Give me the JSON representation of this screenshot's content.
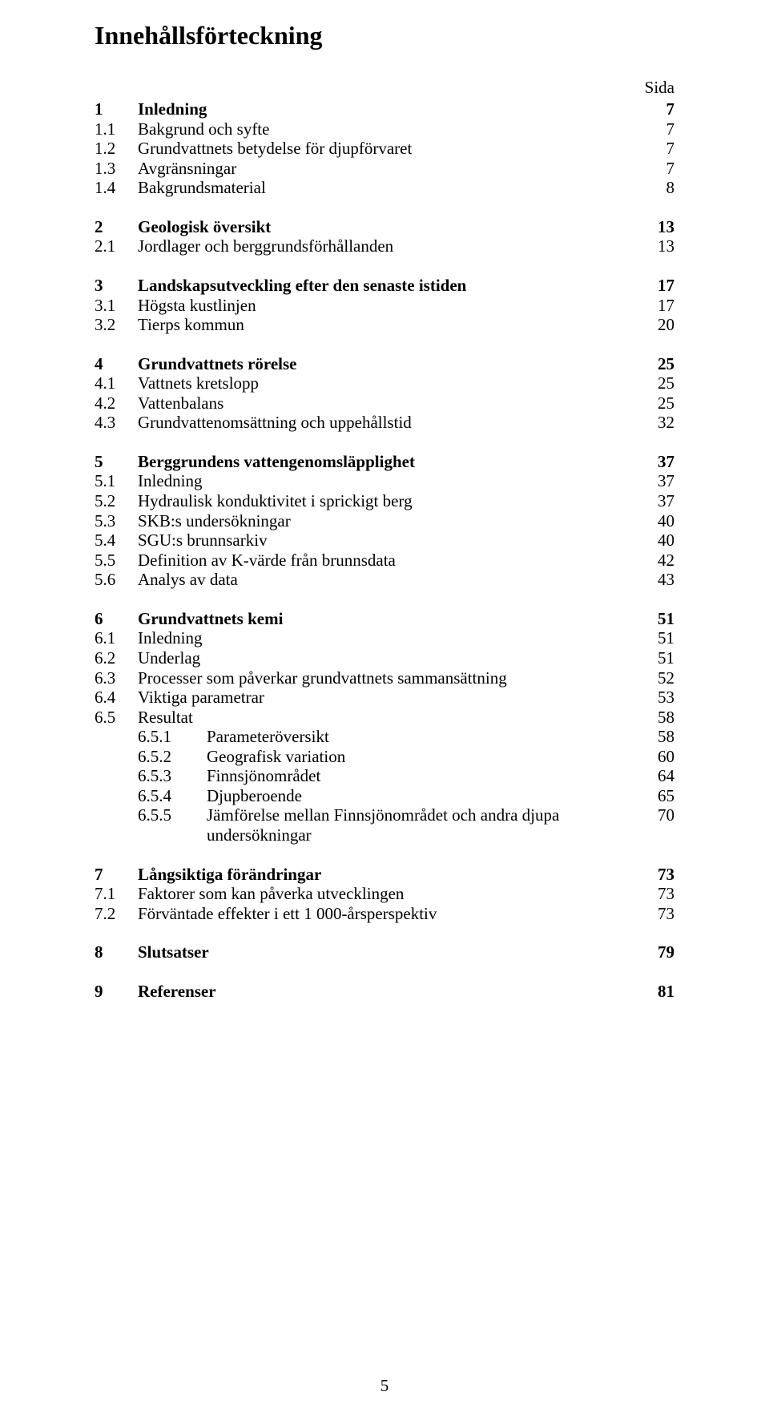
{
  "title": "Innehållsförteckning",
  "sida_label": "Sida",
  "page_number": "5",
  "sections": [
    {
      "head": {
        "num": "1",
        "text": "Inledning",
        "page": "7"
      },
      "items": [
        {
          "num": "1.1",
          "text": "Bakgrund och syfte",
          "page": "7"
        },
        {
          "num": "1.2",
          "text": "Grundvattnets betydelse för djupförvaret",
          "page": "7"
        },
        {
          "num": "1.3",
          "text": "Avgränsningar",
          "page": "7"
        },
        {
          "num": "1.4",
          "text": "Bakgrundsmaterial",
          "page": "8"
        }
      ]
    },
    {
      "head": {
        "num": "2",
        "text": "Geologisk översikt",
        "page": "13"
      },
      "items": [
        {
          "num": "2.1",
          "text": "Jordlager och berggrundsförhållanden",
          "page": "13"
        }
      ]
    },
    {
      "head": {
        "num": "3",
        "text": "Landskapsutveckling efter den senaste istiden",
        "page": "17"
      },
      "items": [
        {
          "num": "3.1",
          "text": "Högsta kustlinjen",
          "page": "17"
        },
        {
          "num": "3.2",
          "text": "Tierps kommun",
          "page": "20"
        }
      ]
    },
    {
      "head": {
        "num": "4",
        "text": "Grundvattnets rörelse",
        "page": "25"
      },
      "items": [
        {
          "num": "4.1",
          "text": "Vattnets kretslopp",
          "page": "25"
        },
        {
          "num": "4.2",
          "text": "Vattenbalans",
          "page": "25"
        },
        {
          "num": "4.3",
          "text": "Grundvattenomsättning och uppehållstid",
          "page": "32"
        }
      ]
    },
    {
      "head": {
        "num": "5",
        "text": "Berggrundens vattengenomsläpplighet",
        "page": "37"
      },
      "items": [
        {
          "num": "5.1",
          "text": "Inledning",
          "page": "37"
        },
        {
          "num": "5.2",
          "text": "Hydraulisk konduktivitet i sprickigt berg",
          "page": "37"
        },
        {
          "num": "5.3",
          "text": "SKB:s undersökningar",
          "page": "40"
        },
        {
          "num": "5.4",
          "text": "SGU:s brunnsarkiv",
          "page": "40"
        },
        {
          "num": "5.5",
          "text": "Definition av K-värde från brunnsdata",
          "page": "42"
        },
        {
          "num": "5.6",
          "text": "Analys av data",
          "page": "43"
        }
      ]
    },
    {
      "head": {
        "num": "6",
        "text": "Grundvattnets kemi",
        "page": "51"
      },
      "items": [
        {
          "num": "6.1",
          "text": "Inledning",
          "page": "51"
        },
        {
          "num": "6.2",
          "text": "Underlag",
          "page": "51"
        },
        {
          "num": "6.3",
          "text": "Processer som påverkar grundvattnets sammansättning",
          "page": "52"
        },
        {
          "num": "6.4",
          "text": "Viktiga parametrar",
          "page": "53"
        },
        {
          "num": "6.5",
          "text": "Resultat",
          "page": "58"
        }
      ],
      "subitems": [
        {
          "num": "6.5.1",
          "text": "Parameteröversikt",
          "page": "58"
        },
        {
          "num": "6.5.2",
          "text": "Geografisk variation",
          "page": "60"
        },
        {
          "num": "6.5.3",
          "text": "Finnsjönområdet",
          "page": "64"
        },
        {
          "num": "6.5.4",
          "text": "Djupberoende",
          "page": "65"
        },
        {
          "num": "6.5.5",
          "text": "Jämförelse mellan Finnsjönområdet och andra djupa undersökningar",
          "page": "70"
        }
      ]
    },
    {
      "head": {
        "num": "7",
        "text": "Långsiktiga förändringar",
        "page": "73"
      },
      "items": [
        {
          "num": "7.1",
          "text": "Faktorer som kan påverka utvecklingen",
          "page": "73"
        },
        {
          "num": "7.2",
          "text": "Förväntade effekter i ett 1 000-årsperspektiv",
          "page": "73"
        }
      ]
    },
    {
      "head": {
        "num": "8",
        "text": "Slutsatser",
        "page": "79"
      },
      "items": []
    },
    {
      "head": {
        "num": "9",
        "text": "Referenser",
        "page": "81"
      },
      "items": []
    }
  ]
}
